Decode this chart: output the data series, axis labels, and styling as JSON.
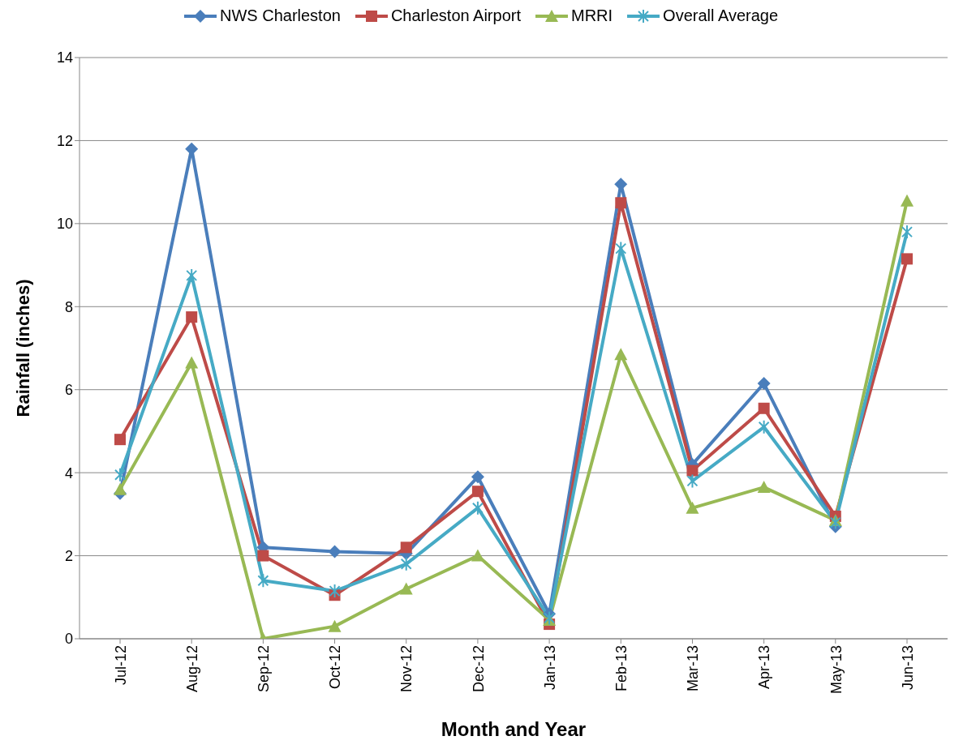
{
  "chart_data": {
    "type": "line",
    "xlabel": "Month and Year",
    "ylabel": "Rainfall (inches)",
    "categories": [
      "Jul-12",
      "Aug-12",
      "Sep-12",
      "Oct-12",
      "Nov-12",
      "Dec-12",
      "Jan-13",
      "Feb-13",
      "Mar-13",
      "Apr-13",
      "May-13",
      "Jun-13"
    ],
    "series": [
      {
        "name": "NWS Charleston",
        "color": "#4a7ebb",
        "marker": "diamond",
        "values": [
          3.5,
          11.8,
          2.2,
          2.1,
          2.05,
          3.9,
          0.6,
          10.95,
          4.2,
          6.15,
          2.7,
          null
        ]
      },
      {
        "name": "Charleston Airport",
        "color": "#be4b48",
        "marker": "square",
        "values": [
          4.8,
          7.75,
          2.0,
          1.05,
          2.2,
          3.55,
          0.35,
          10.5,
          4.05,
          5.55,
          2.95,
          9.15
        ]
      },
      {
        "name": "MRRI",
        "color": "#98b954",
        "marker": "triangle",
        "values": [
          3.6,
          6.65,
          0.0,
          0.3,
          1.2,
          2.0,
          0.45,
          6.85,
          3.15,
          3.65,
          2.85,
          10.55
        ]
      },
      {
        "name": "Overall Average",
        "color": "#46aac5",
        "marker": "cross",
        "values": [
          3.95,
          8.75,
          1.4,
          1.15,
          1.8,
          3.15,
          0.5,
          9.4,
          3.8,
          5.1,
          2.8,
          9.8
        ]
      }
    ],
    "ylim": [
      0,
      14
    ],
    "yticks": [
      0,
      2,
      4,
      6,
      8,
      10,
      12,
      14
    ],
    "grid": "y",
    "legend": "top",
    "line_style": "solid"
  }
}
